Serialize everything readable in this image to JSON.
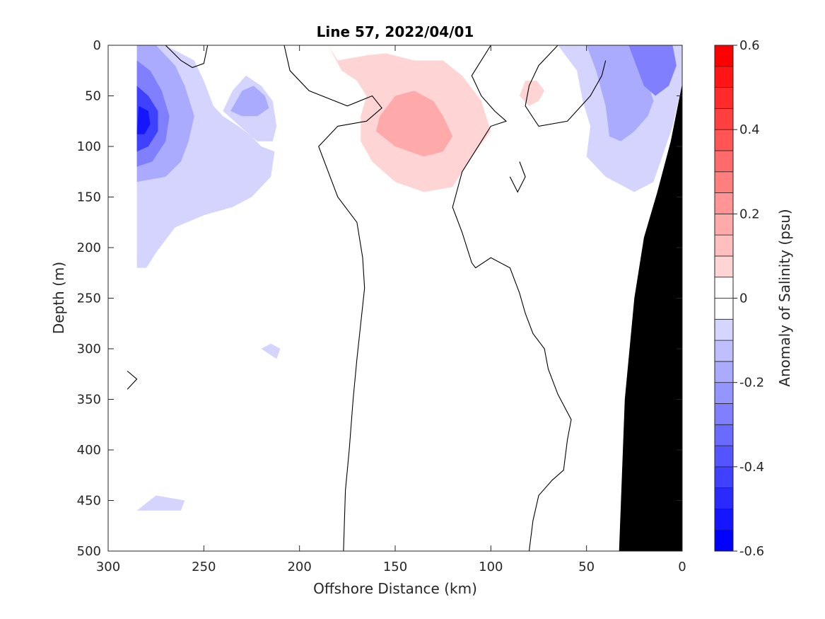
{
  "chart_data": {
    "type": "contour",
    "title": "Line 57, 2022/04/01",
    "xlabel": "Offshore Distance (km)",
    "ylabel": "Depth (m)",
    "colorbar_label": "Anomaly of Salinity (psu)",
    "xlim": [
      300,
      0
    ],
    "ylim": [
      500,
      0
    ],
    "x_ticks": [
      300,
      250,
      200,
      150,
      100,
      50,
      0
    ],
    "y_ticks": [
      0,
      50,
      100,
      150,
      200,
      250,
      300,
      350,
      400,
      450,
      500
    ],
    "colorbar": {
      "min": -0.6,
      "max": 0.6,
      "step": 0.05,
      "ticks": [
        0.6,
        0.4,
        0.2,
        0,
        -0.2,
        -0.4,
        -0.6
      ],
      "negative_color": "#0000ff",
      "positive_color": "#ff0000",
      "zero_color": "#ffffff"
    },
    "fill_regions": [
      {
        "level": -0.1,
        "points": [
          [
            285,
            0
          ],
          [
            270,
            0
          ],
          [
            255,
            15
          ],
          [
            250,
            35
          ],
          [
            245,
            60
          ],
          [
            240,
            70
          ],
          [
            232,
            80
          ],
          [
            225,
            90
          ],
          [
            220,
            100
          ],
          [
            213,
            105
          ],
          [
            215,
            130
          ],
          [
            225,
            150
          ],
          [
            235,
            160
          ],
          [
            250,
            168
          ],
          [
            265,
            180
          ],
          [
            275,
            205
          ],
          [
            280,
            220
          ],
          [
            285,
            220
          ]
        ]
      },
      {
        "level": -0.2,
        "points": [
          [
            285,
            0
          ],
          [
            275,
            0
          ],
          [
            265,
            20
          ],
          [
            260,
            40
          ],
          [
            255,
            70
          ],
          [
            258,
            95
          ],
          [
            262,
            115
          ],
          [
            270,
            130
          ],
          [
            285,
            135
          ]
        ]
      },
      {
        "level": -0.3,
        "points": [
          [
            285,
            15
          ],
          [
            278,
            25
          ],
          [
            272,
            45
          ],
          [
            268,
            70
          ],
          [
            270,
            95
          ],
          [
            277,
            115
          ],
          [
            285,
            120
          ]
        ]
      },
      {
        "level": -0.45,
        "points": [
          [
            285,
            40
          ],
          [
            279,
            50
          ],
          [
            274,
            65
          ],
          [
            274,
            85
          ],
          [
            279,
            100
          ],
          [
            285,
            105
          ]
        ]
      },
      {
        "level": -0.55,
        "points": [
          [
            284,
            60
          ],
          [
            279,
            65
          ],
          [
            278,
            78
          ],
          [
            281,
            88
          ],
          [
            285,
            88
          ]
        ]
      },
      {
        "level": -0.1,
        "points": [
          [
            240,
            65
          ],
          [
            235,
            45
          ],
          [
            228,
            30
          ],
          [
            220,
            40
          ],
          [
            214,
            55
          ],
          [
            212,
            80
          ],
          [
            214,
            95
          ],
          [
            222,
            95
          ],
          [
            230,
            82
          ]
        ]
      },
      {
        "level": -0.2,
        "points": [
          [
            236,
            65
          ],
          [
            230,
            45
          ],
          [
            224,
            40
          ],
          [
            218,
            50
          ],
          [
            216,
            62
          ],
          [
            222,
            70
          ],
          [
            230,
            70
          ]
        ]
      },
      {
        "level": -0.1,
        "points": [
          [
            65,
            0
          ],
          [
            55,
            25
          ],
          [
            52,
            55
          ],
          [
            48,
            80
          ],
          [
            50,
            110
          ],
          [
            40,
            130
          ],
          [
            30,
            140
          ],
          [
            25,
            145
          ],
          [
            15,
            135
          ],
          [
            5,
            80
          ],
          [
            0,
            38
          ],
          [
            0,
            0
          ]
        ]
      },
      {
        "level": -0.2,
        "points": [
          [
            50,
            0
          ],
          [
            45,
            25
          ],
          [
            40,
            60
          ],
          [
            38,
            90
          ],
          [
            32,
            95
          ],
          [
            25,
            85
          ],
          [
            18,
            70
          ],
          [
            15,
            55
          ],
          [
            20,
            25
          ],
          [
            28,
            0
          ]
        ]
      },
      {
        "level": -0.3,
        "points": [
          [
            28,
            0
          ],
          [
            24,
            20
          ],
          [
            20,
            40
          ],
          [
            14,
            50
          ],
          [
            7,
            40
          ],
          [
            3,
            20
          ],
          [
            5,
            0
          ]
        ]
      },
      {
        "level": -0.1,
        "points": [
          [
            215,
            295
          ],
          [
            210,
            300
          ],
          [
            212,
            310
          ],
          [
            220,
            300
          ]
        ]
      },
      {
        "level": -0.1,
        "points": [
          [
            275,
            445
          ],
          [
            260,
            450
          ],
          [
            262,
            460
          ],
          [
            285,
            460
          ]
        ]
      },
      {
        "level": 0.1,
        "points": [
          [
            185,
            0
          ],
          [
            180,
            15
          ],
          [
            165,
            10
          ],
          [
            155,
            8
          ],
          [
            140,
            15
          ],
          [
            125,
            15
          ],
          [
            115,
            30
          ],
          [
            105,
            55
          ],
          [
            100,
            85
          ],
          [
            110,
            110
          ],
          [
            120,
            140
          ],
          [
            135,
            145
          ],
          [
            150,
            135
          ],
          [
            162,
            115
          ],
          [
            168,
            95
          ],
          [
            168,
            70
          ],
          [
            165,
            50
          ],
          [
            170,
            35
          ],
          [
            178,
            25
          ]
        ]
      },
      {
        "level": 0.2,
        "points": [
          [
            160,
            85
          ],
          [
            150,
            100
          ],
          [
            135,
            110
          ],
          [
            125,
            105
          ],
          [
            120,
            90
          ],
          [
            125,
            70
          ],
          [
            130,
            55
          ],
          [
            140,
            45
          ],
          [
            150,
            50
          ],
          [
            158,
            70
          ]
        ]
      },
      {
        "level": 0.1,
        "points": [
          [
            82,
            35
          ],
          [
            85,
            50
          ],
          [
            80,
            60
          ],
          [
            75,
            55
          ],
          [
            72,
            45
          ],
          [
            76,
            35
          ]
        ]
      }
    ],
    "zero_contours": [
      [
        [
          270,
          0
        ],
        [
          262,
          15
        ],
        [
          256,
          22
        ],
        [
          250,
          18
        ],
        [
          248,
          0
        ]
      ],
      [
        [
          208,
          0
        ],
        [
          205,
          25
        ],
        [
          195,
          45
        ],
        [
          175,
          60
        ],
        [
          162,
          50
        ],
        [
          157,
          62
        ],
        [
          165,
          75
        ],
        [
          180,
          80
        ],
        [
          190,
          100
        ],
        [
          185,
          125
        ],
        [
          180,
          150
        ],
        [
          170,
          175
        ],
        [
          167,
          210
        ],
        [
          166,
          240
        ],
        [
          168,
          275
        ],
        [
          170,
          310
        ],
        [
          172,
          350
        ],
        [
          174,
          400
        ],
        [
          176,
          440
        ],
        [
          177,
          500
        ]
      ],
      [
        [
          100,
          0
        ],
        [
          110,
          30
        ],
        [
          105,
          50
        ],
        [
          98,
          65
        ],
        [
          92,
          75
        ],
        [
          100,
          80
        ],
        [
          110,
          110
        ],
        [
          115,
          125
        ],
        [
          120,
          160
        ],
        [
          115,
          185
        ],
        [
          110,
          215
        ],
        [
          108,
          220
        ],
        [
          100,
          210
        ],
        [
          90,
          220
        ],
        [
          85,
          245
        ],
        [
          82,
          265
        ],
        [
          78,
          285
        ],
        [
          72,
          300
        ],
        [
          70,
          320
        ],
        [
          65,
          345
        ],
        [
          58,
          370
        ],
        [
          60,
          390
        ],
        [
          62,
          420
        ],
        [
          68,
          430
        ],
        [
          75,
          445
        ],
        [
          78,
          470
        ],
        [
          80,
          500
        ]
      ],
      [
        [
          290,
          322
        ],
        [
          285,
          330
        ],
        [
          290,
          340
        ]
      ],
      [
        [
          65,
          0
        ],
        [
          75,
          20
        ],
        [
          80,
          40
        ],
        [
          82,
          60
        ],
        [
          75,
          80
        ],
        [
          60,
          75
        ],
        [
          48,
          50
        ],
        [
          42,
          30
        ],
        [
          40,
          15
        ]
      ],
      [
        [
          85,
          115
        ],
        [
          82,
          130
        ],
        [
          86,
          145
        ],
        [
          90,
          130
        ]
      ]
    ],
    "bathymetry": [
      [
        33,
        500
      ],
      [
        30,
        350
      ],
      [
        25,
        250
      ],
      [
        20,
        190
      ],
      [
        13,
        145
      ],
      [
        6,
        95
      ],
      [
        0,
        38
      ],
      [
        0,
        500
      ]
    ]
  }
}
